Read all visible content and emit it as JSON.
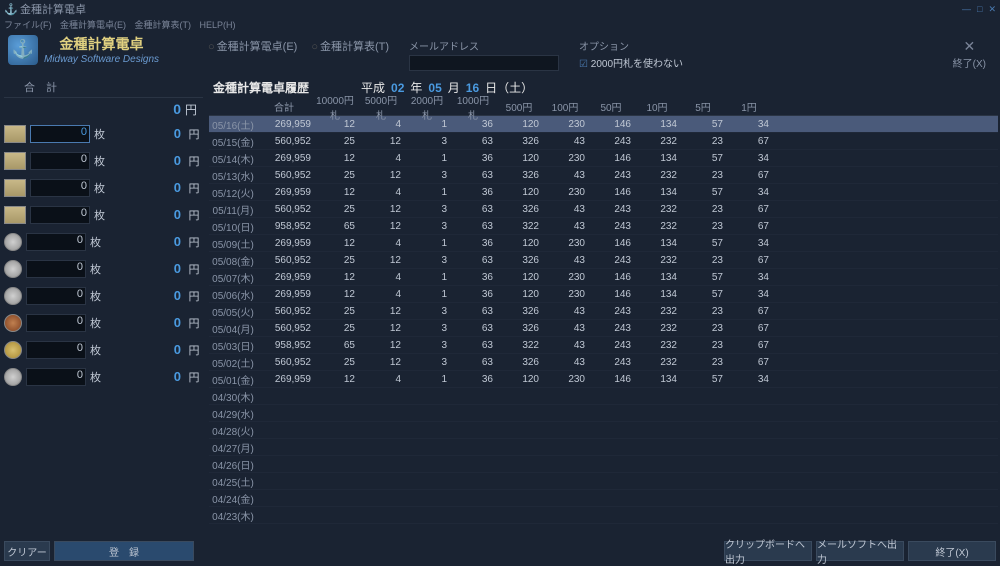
{
  "window": {
    "title": "金種計算電卓"
  },
  "menu": {
    "file": "ファイル(F)",
    "calc": "金種計算電卓(E)",
    "table": "金種計算表(T)",
    "help": "HELP(H)"
  },
  "logo": {
    "jp": "金種計算電卓",
    "en": "Midway Software Designs"
  },
  "tabs": {
    "calc": "金種計算電卓(E)",
    "table": "金種計算表(T)"
  },
  "mail": {
    "label": "メールアドレス",
    "value": ""
  },
  "option": {
    "label": "オプション",
    "check": "2000円札を使わない"
  },
  "exit_top": {
    "icon": "✕",
    "label": "終了(X)"
  },
  "left": {
    "header_l": "合　計",
    "total": "0",
    "unit": "円",
    "denoms": [
      {
        "val": "0",
        "sub": "0",
        "active": true,
        "type": "bill"
      },
      {
        "val": "0",
        "sub": "0",
        "type": "bill"
      },
      {
        "val": "0",
        "sub": "0",
        "type": "bill"
      },
      {
        "val": "0",
        "sub": "0",
        "type": "bill"
      },
      {
        "val": "0",
        "sub": "0",
        "type": "coin"
      },
      {
        "val": "0",
        "sub": "0",
        "type": "coin"
      },
      {
        "val": "0",
        "sub": "0",
        "type": "coin"
      },
      {
        "val": "0",
        "sub": "0",
        "type": "coin bronze"
      },
      {
        "val": "0",
        "sub": "0",
        "type": "coin gold"
      },
      {
        "val": "0",
        "sub": "0",
        "type": "coin"
      }
    ],
    "mai": "枚",
    "yen": "円"
  },
  "history": {
    "title": "金種計算電卓履歴",
    "era": "平成",
    "y": "02",
    "yl": "年",
    "m": "05",
    "ml": "月",
    "d": "16",
    "dl": "日（土）",
    "cols": [
      "",
      "合計",
      "10000円札",
      "5000円札",
      "2000円札",
      "1000円札",
      "500円",
      "100円",
      "50円",
      "10円",
      "5円",
      "1円"
    ],
    "rows": [
      {
        "d": "05/16(土)",
        "v": [
          "269,959",
          "12",
          "4",
          "1",
          "36",
          "120",
          "230",
          "146",
          "134",
          "57",
          "34"
        ],
        "sel": true
      },
      {
        "d": "05/15(金)",
        "v": [
          "560,952",
          "25",
          "12",
          "3",
          "63",
          "326",
          "43",
          "243",
          "232",
          "23",
          "67"
        ]
      },
      {
        "d": "05/14(木)",
        "v": [
          "269,959",
          "12",
          "4",
          "1",
          "36",
          "120",
          "230",
          "146",
          "134",
          "57",
          "34"
        ]
      },
      {
        "d": "05/13(水)",
        "v": [
          "560,952",
          "25",
          "12",
          "3",
          "63",
          "326",
          "43",
          "243",
          "232",
          "23",
          "67"
        ]
      },
      {
        "d": "05/12(火)",
        "v": [
          "269,959",
          "12",
          "4",
          "1",
          "36",
          "120",
          "230",
          "146",
          "134",
          "57",
          "34"
        ]
      },
      {
        "d": "05/11(月)",
        "v": [
          "560,952",
          "25",
          "12",
          "3",
          "63",
          "326",
          "43",
          "243",
          "232",
          "23",
          "67"
        ]
      },
      {
        "d": "05/10(日)",
        "v": [
          "958,952",
          "65",
          "12",
          "3",
          "63",
          "322",
          "43",
          "243",
          "232",
          "23",
          "67"
        ]
      },
      {
        "d": "05/09(土)",
        "v": [
          "269,959",
          "12",
          "4",
          "1",
          "36",
          "120",
          "230",
          "146",
          "134",
          "57",
          "34"
        ]
      },
      {
        "d": "05/08(金)",
        "v": [
          "560,952",
          "25",
          "12",
          "3",
          "63",
          "326",
          "43",
          "243",
          "232",
          "23",
          "67"
        ]
      },
      {
        "d": "05/07(木)",
        "v": [
          "269,959",
          "12",
          "4",
          "1",
          "36",
          "120",
          "230",
          "146",
          "134",
          "57",
          "34"
        ]
      },
      {
        "d": "05/06(水)",
        "v": [
          "269,959",
          "12",
          "4",
          "1",
          "36",
          "120",
          "230",
          "146",
          "134",
          "57",
          "34"
        ]
      },
      {
        "d": "05/05(火)",
        "v": [
          "560,952",
          "25",
          "12",
          "3",
          "63",
          "326",
          "43",
          "243",
          "232",
          "23",
          "67"
        ]
      },
      {
        "d": "05/04(月)",
        "v": [
          "560,952",
          "25",
          "12",
          "3",
          "63",
          "326",
          "43",
          "243",
          "232",
          "23",
          "67"
        ]
      },
      {
        "d": "05/03(日)",
        "v": [
          "958,952",
          "65",
          "12",
          "3",
          "63",
          "322",
          "43",
          "243",
          "232",
          "23",
          "67"
        ]
      },
      {
        "d": "05/02(土)",
        "v": [
          "560,952",
          "25",
          "12",
          "3",
          "63",
          "326",
          "43",
          "243",
          "232",
          "23",
          "67"
        ]
      },
      {
        "d": "05/01(金)",
        "v": [
          "269,959",
          "12",
          "4",
          "1",
          "36",
          "120",
          "230",
          "146",
          "134",
          "57",
          "34"
        ]
      },
      {
        "d": "04/30(木)",
        "v": [
          "",
          "",
          "",
          "",
          "",
          "",
          "",
          "",
          "",
          "",
          ""
        ]
      },
      {
        "d": "04/29(水)",
        "v": [
          "",
          "",
          "",
          "",
          "",
          "",
          "",
          "",
          "",
          "",
          ""
        ]
      },
      {
        "d": "04/28(火)",
        "v": [
          "",
          "",
          "",
          "",
          "",
          "",
          "",
          "",
          "",
          "",
          ""
        ]
      },
      {
        "d": "04/27(月)",
        "v": [
          "",
          "",
          "",
          "",
          "",
          "",
          "",
          "",
          "",
          "",
          ""
        ]
      },
      {
        "d": "04/26(日)",
        "v": [
          "",
          "",
          "",
          "",
          "",
          "",
          "",
          "",
          "",
          "",
          ""
        ]
      },
      {
        "d": "04/25(土)",
        "v": [
          "",
          "",
          "",
          "",
          "",
          "",
          "",
          "",
          "",
          "",
          ""
        ]
      },
      {
        "d": "04/24(金)",
        "v": [
          "",
          "",
          "",
          "",
          "",
          "",
          "",
          "",
          "",
          "",
          ""
        ]
      },
      {
        "d": "04/23(木)",
        "v": [
          "",
          "",
          "",
          "",
          "",
          "",
          "",
          "",
          "",
          "",
          ""
        ]
      }
    ]
  },
  "footer": {
    "clear": "クリアー",
    "register": "登　録",
    "clip": "クリップボードへ出力",
    "mail": "メールソフトへ出力",
    "exit": "終了(X)"
  }
}
